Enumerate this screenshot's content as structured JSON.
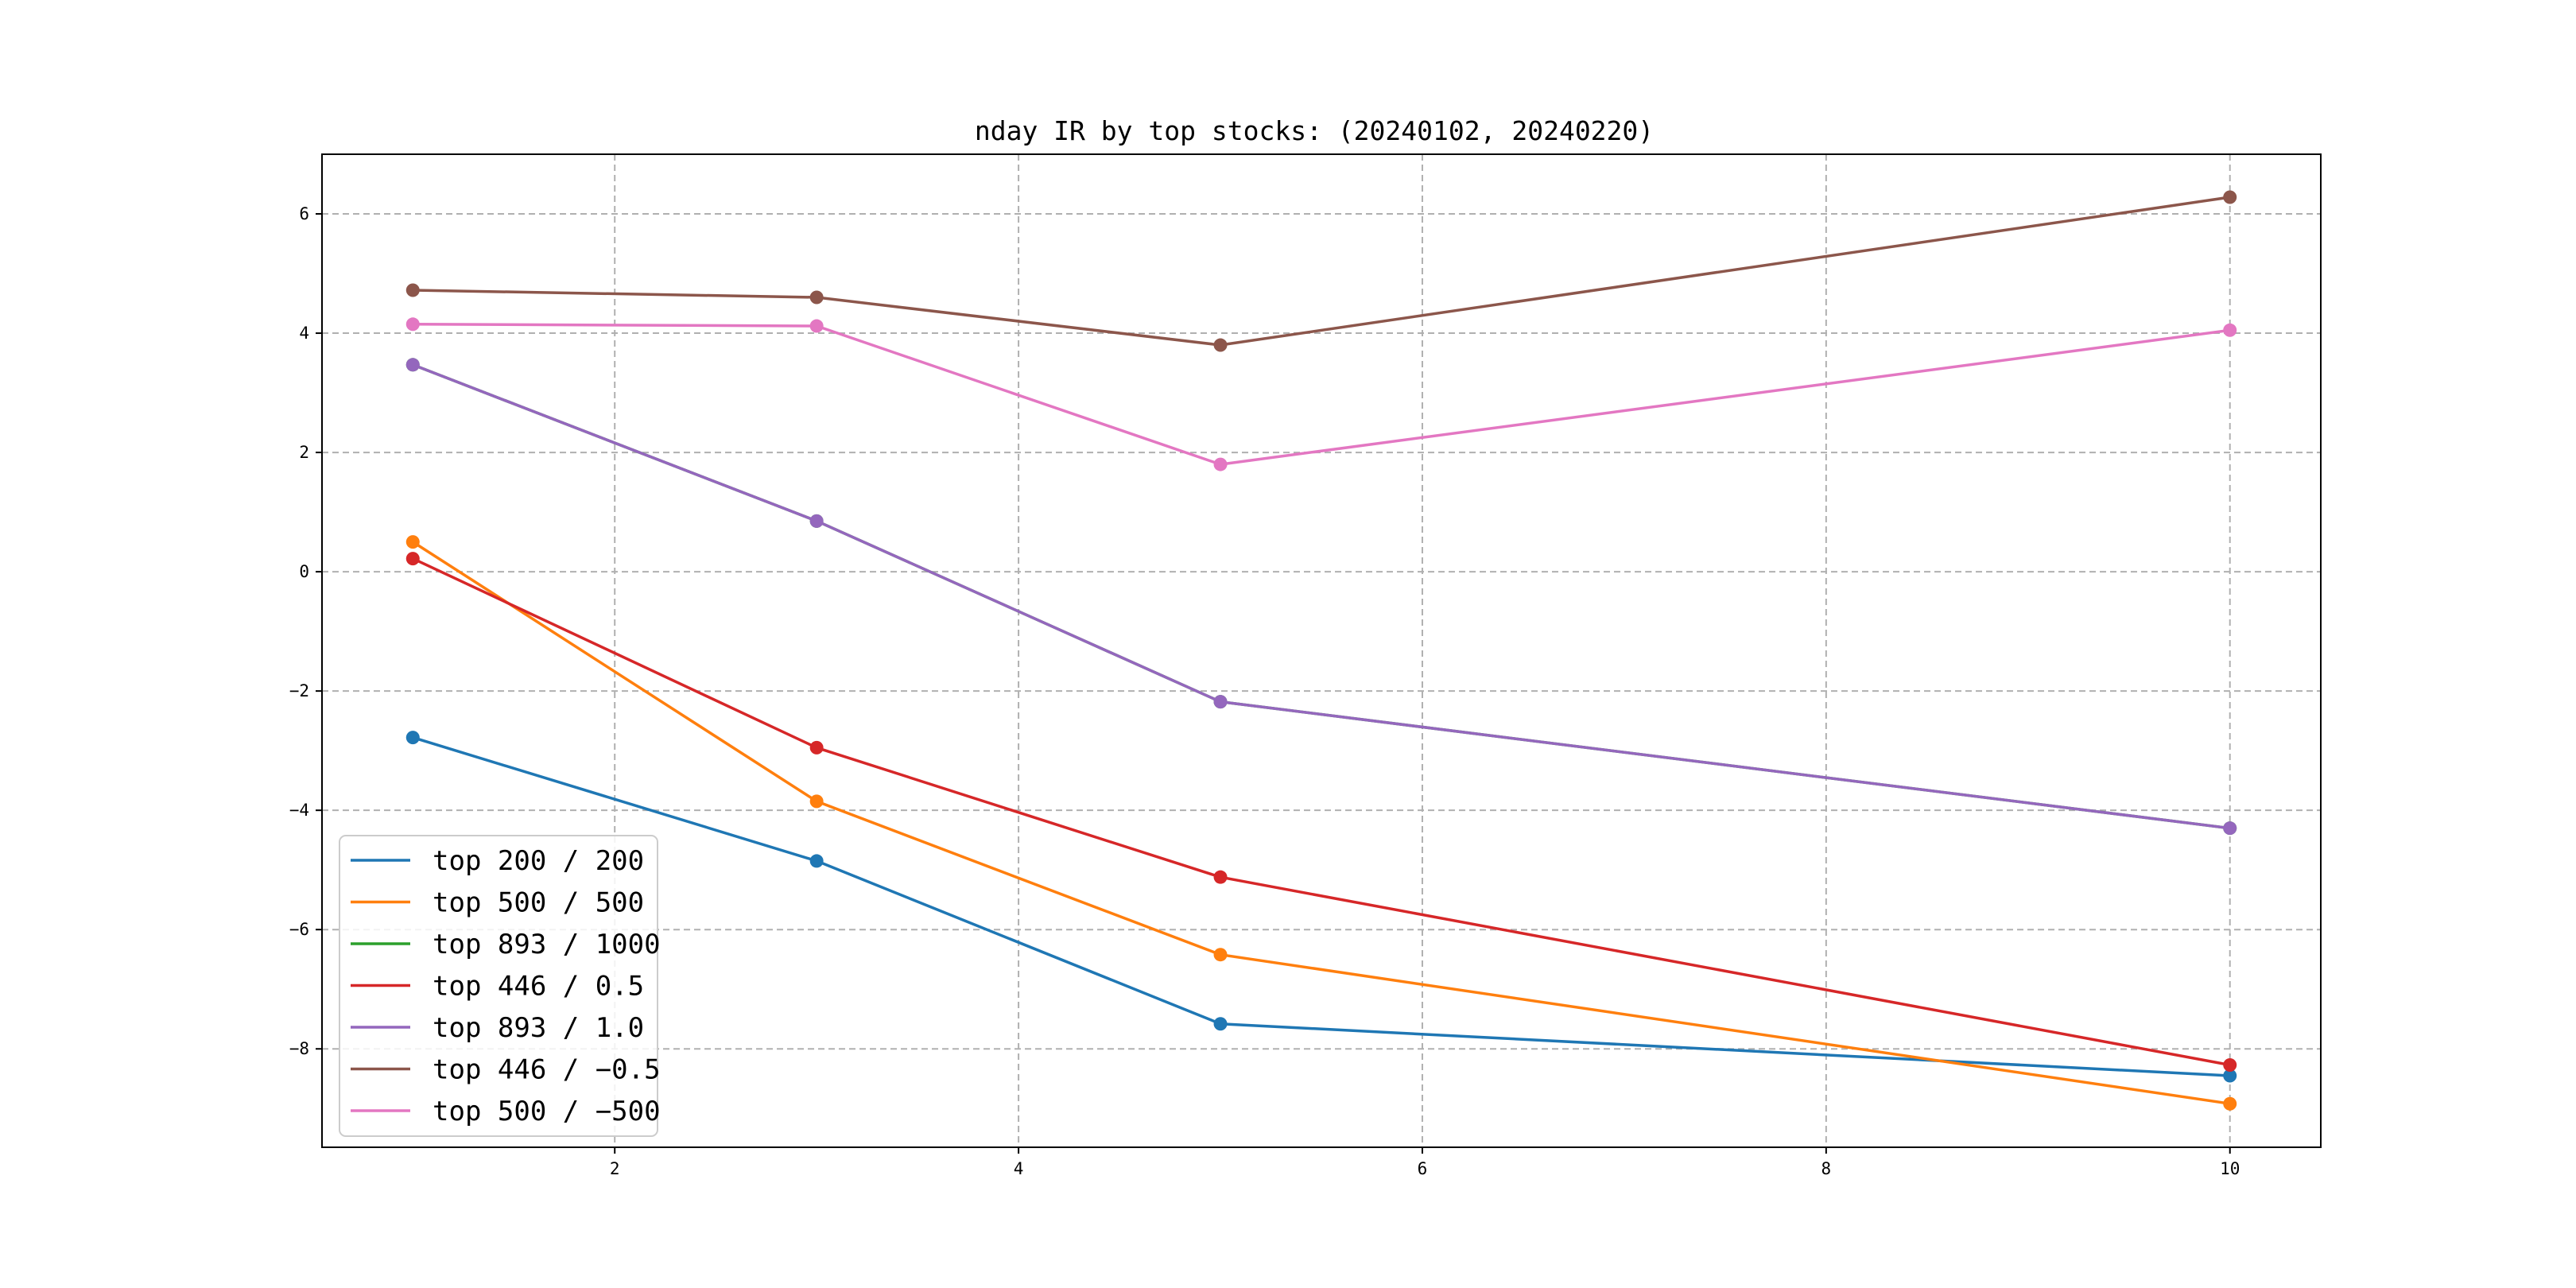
{
  "chart_data": {
    "type": "line",
    "title": "nday IR by top stocks: (20240102, 20240220)",
    "xlabel": "",
    "ylabel": "",
    "x": [
      1,
      3,
      5,
      10
    ],
    "xlim": [
      0.55,
      10.45
    ],
    "ylim": [
      -9.65,
      7.0
    ],
    "xticks": [
      2,
      4,
      6,
      8,
      10
    ],
    "yticks": [
      6,
      4,
      2,
      0,
      -2,
      -4,
      -6,
      -8
    ],
    "grid": true,
    "legend_position": "lower-left",
    "series": [
      {
        "name": "top 200 / 200",
        "color": "#1f77b4",
        "values": [
          -2.78,
          -4.85,
          -7.58,
          -8.45
        ]
      },
      {
        "name": "top 500 / 500",
        "color": "#ff7f0e",
        "values": [
          0.5,
          -3.85,
          -6.42,
          -8.92
        ]
      },
      {
        "name": "top 893 / 1000",
        "color": "#2ca02c",
        "values": [
          3.47,
          0.85,
          -2.18,
          -4.3
        ]
      },
      {
        "name": "top 446 / 0.5",
        "color": "#d62728",
        "values": [
          0.22,
          -2.95,
          -5.12,
          -8.27
        ]
      },
      {
        "name": "top 893 / 1.0",
        "color": "#9467bd",
        "values": [
          3.47,
          0.85,
          -2.18,
          -4.3
        ]
      },
      {
        "name": "top 446 / -0.5",
        "color": "#8c564b",
        "values": [
          4.72,
          4.6,
          3.8,
          6.28
        ]
      },
      {
        "name": "top 500 / -500",
        "color": "#e377c2",
        "values": [
          4.15,
          4.12,
          1.8,
          4.05
        ]
      }
    ]
  }
}
